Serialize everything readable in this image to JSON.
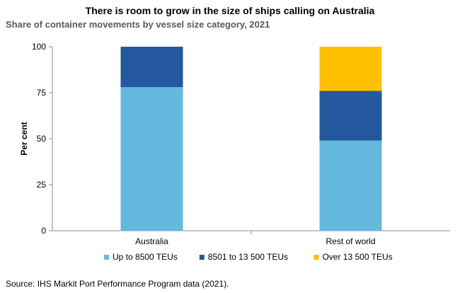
{
  "chart_data": {
    "type": "bar",
    "stacked": true,
    "title": "There is room to grow in the size of ships calling on Australia",
    "subtitle": "Share of container movements by vessel size category, 2021",
    "xlabel": "",
    "ylabel": "Per cent",
    "ylim": [
      0,
      100
    ],
    "yticks": [
      "0",
      "25",
      "50",
      "75",
      "100"
    ],
    "grid": false,
    "legend_position": "bottom",
    "categories": [
      "Australia",
      "Rest of world"
    ],
    "series": [
      {
        "name": "Up to 8500 TEUs",
        "color": "#65B8DE",
        "values": [
          78,
          49
        ]
      },
      {
        "name": "8501 to 13 500 TEUs",
        "color": "#24589E",
        "values": [
          22,
          27
        ]
      },
      {
        "name": "Over 13 500 TEUs",
        "color": "#FFC000",
        "values": [
          0,
          24
        ]
      }
    ],
    "source": "Source: IHS Markit Port Performance Program data (2021)."
  }
}
